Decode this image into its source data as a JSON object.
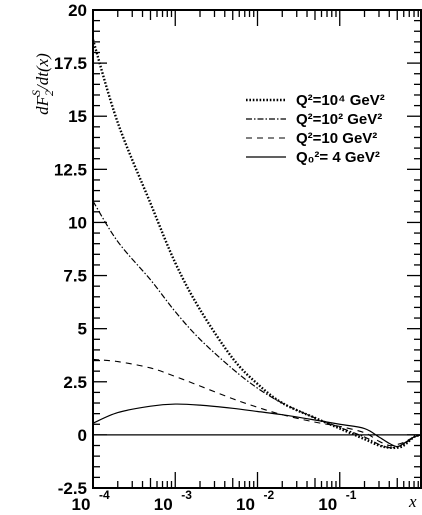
{
  "chart_data": {
    "type": "line",
    "xscale": "log",
    "xlim": [
      0.0001,
      1
    ],
    "ylim": [
      -2.5,
      20
    ],
    "xlabel": "x",
    "ylabel": "dF",
    "ylabel_sub": "2",
    "ylabel_sup": "S",
    "ylabel_tail": "/dt(x)",
    "yticks": [
      -2.5,
      0,
      2.5,
      5,
      7.5,
      10,
      12.5,
      15,
      17.5,
      20
    ],
    "ytick_labels": [
      "-2.5",
      "0",
      "2.5",
      "5",
      "7.5",
      "10",
      "12.5",
      "15",
      "17.5",
      "20"
    ],
    "xticks": [
      {
        "value": 0.0001,
        "base": "10",
        "exp": "-4"
      },
      {
        "value": 0.001,
        "base": "10",
        "exp": "-3"
      },
      {
        "value": 0.01,
        "base": "10",
        "exp": "-2"
      },
      {
        "value": 0.1,
        "base": "10",
        "exp": "-1"
      }
    ],
    "legend_position": "top-right",
    "series": [
      {
        "name": "Q²=10⁴ GeV²",
        "style": "dotted",
        "x": [
          0.0001,
          0.0002,
          0.0005,
          0.001,
          0.002,
          0.005,
          0.01,
          0.02,
          0.05,
          0.1,
          0.2,
          0.3,
          0.4,
          0.5,
          0.6,
          0.8,
          1.0
        ],
        "y": [
          18.6,
          14.7,
          10.9,
          8.1,
          5.9,
          3.6,
          2.4,
          1.5,
          0.8,
          0.3,
          -0.2,
          -0.5,
          -0.6,
          -0.6,
          -0.5,
          -0.1,
          0
        ]
      },
      {
        "name": "Q²=10² GeV²",
        "style": "dash-dot",
        "x": [
          0.0001,
          0.0002,
          0.0005,
          0.001,
          0.002,
          0.005,
          0.01,
          0.02,
          0.05,
          0.1,
          0.2,
          0.3,
          0.4,
          0.5,
          0.6,
          0.8,
          1.0
        ],
        "y": [
          11.0,
          9.1,
          7.3,
          5.8,
          4.5,
          3.1,
          2.2,
          1.5,
          0.8,
          0.35,
          -0.1,
          -0.45,
          -0.6,
          -0.55,
          -0.45,
          -0.1,
          0
        ]
      },
      {
        "name": "Q²=10 GeV²",
        "style": "dashed",
        "x": [
          0.0001,
          0.0002,
          0.0005,
          0.001,
          0.002,
          0.005,
          0.01,
          0.02,
          0.05,
          0.1,
          0.2,
          0.3,
          0.4,
          0.5,
          0.6,
          0.8,
          1.0
        ],
        "y": [
          3.55,
          3.45,
          3.15,
          2.75,
          2.3,
          1.7,
          1.3,
          0.95,
          0.6,
          0.4,
          0.1,
          -0.3,
          -0.5,
          -0.45,
          -0.35,
          -0.1,
          0
        ]
      },
      {
        "name": "Q₀²=  4 GeV²",
        "style": "solid",
        "x": [
          0.0001,
          0.0002,
          0.0005,
          0.001,
          0.002,
          0.005,
          0.01,
          0.02,
          0.05,
          0.1,
          0.2,
          0.3,
          0.4,
          0.5,
          0.6,
          0.8,
          1.0
        ],
        "y": [
          0.55,
          1.05,
          1.35,
          1.45,
          1.4,
          1.25,
          1.1,
          0.95,
          0.7,
          0.5,
          0.3,
          -0.1,
          -0.4,
          -0.55,
          -0.4,
          -0.1,
          0
        ]
      }
    ]
  }
}
